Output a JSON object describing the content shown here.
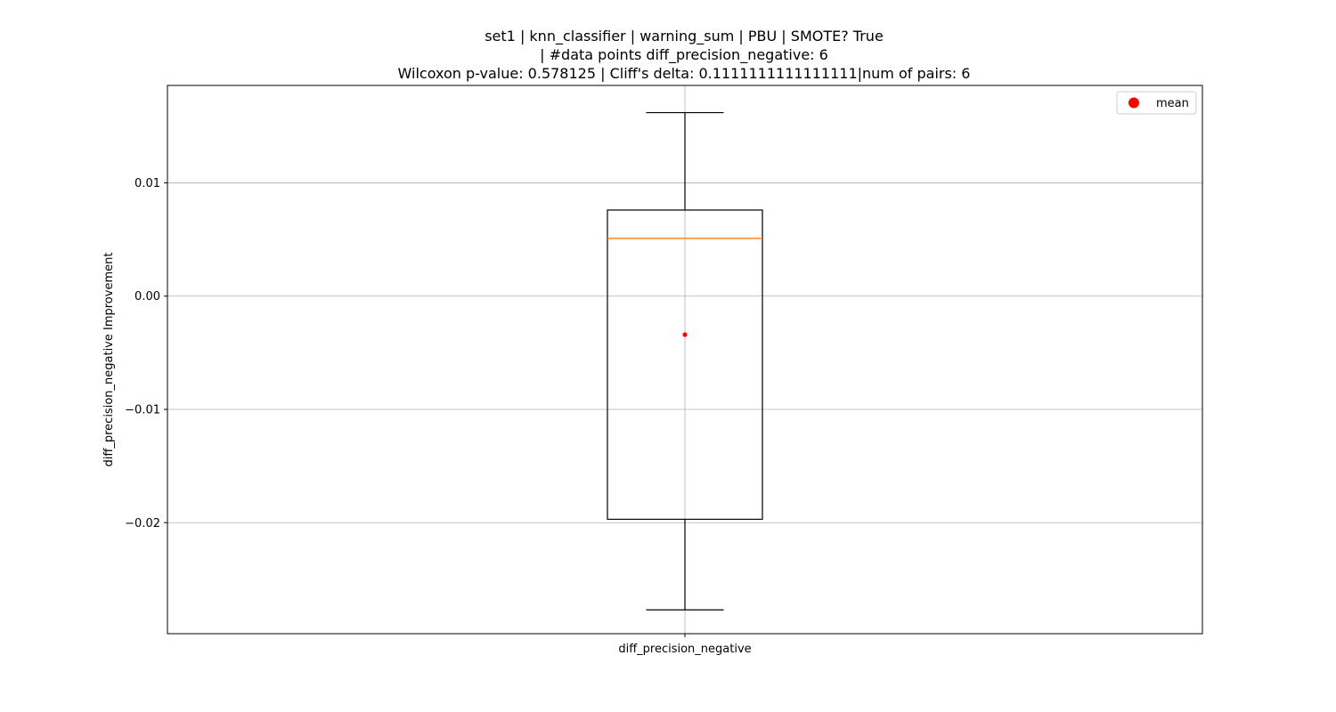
{
  "chart_data": {
    "type": "box",
    "title_lines": [
      "set1 | knn_classifier | warning_sum | PBU | SMOTE? True",
      "| #data points diff_precision_negative: 6",
      "Wilcoxon p-value: 0.578125 | Cliff's delta: 0.1111111111111111|num of pairs: 6"
    ],
    "ylabel": "diff_precision_negative Improvement",
    "xlabel": "",
    "ylim": [
      -0.0298,
      0.0186
    ],
    "yticks": [
      0.01,
      0.0,
      -0.01,
      -0.02
    ],
    "ytick_labels": [
      "0.01",
      "0.00",
      "−0.01",
      "−0.02"
    ],
    "grid": true,
    "categories": [
      "diff_precision_negative"
    ],
    "boxes": [
      {
        "name": "diff_precision_negative",
        "whisker_low": -0.0277,
        "q1": -0.0197,
        "median": 0.0051,
        "q3": 0.0076,
        "whisker_high": 0.0162,
        "mean": -0.0034
      }
    ],
    "legend": {
      "position": "upper-right",
      "entries": [
        {
          "label": "mean",
          "color": "#ff0000",
          "marker": "circle"
        }
      ]
    },
    "colors": {
      "box": "#000000",
      "median": "#ff7f0e",
      "mean": "#ff0000",
      "grid": "#b0b0b0"
    }
  }
}
